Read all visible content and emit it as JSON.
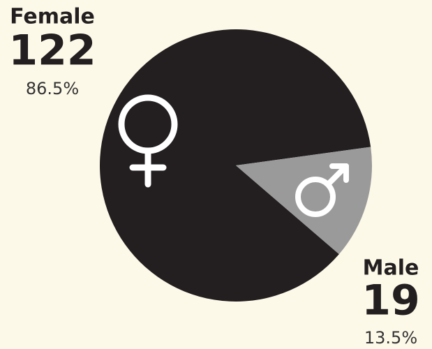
{
  "chart_data": {
    "type": "pie",
    "categories": [
      "Female",
      "Male"
    ],
    "values": [
      122,
      19
    ],
    "percent_labels": [
      "86.5%",
      "13.5%"
    ],
    "colors": [
      "#231f20",
      "#9a9a9a"
    ]
  }
}
